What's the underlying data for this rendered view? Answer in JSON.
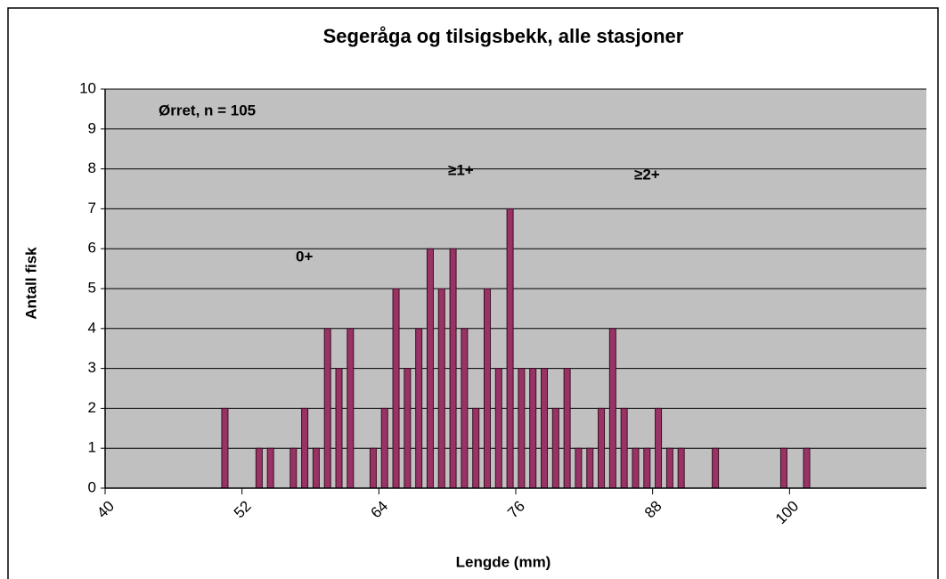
{
  "chart_data": {
    "type": "histogram",
    "title": "Segeråga og tilsigsbekk, alle stasjoner",
    "xlabel": "Lengde (mm)",
    "ylabel": "Antall fisk",
    "annotations": [
      "Ørret, n = 105",
      "0+",
      "≥1+",
      "≥2+"
    ],
    "bins": [
      40,
      41,
      42,
      43,
      44,
      45,
      46,
      47,
      48,
      49,
      50,
      51,
      52,
      53,
      54,
      55,
      56,
      57,
      58,
      59,
      60,
      61,
      62,
      63,
      64,
      65,
      66,
      67,
      68,
      69,
      70,
      71,
      72,
      73,
      74,
      75,
      76,
      77,
      78,
      79,
      80,
      81,
      82,
      83,
      84,
      85,
      86,
      87,
      88,
      89,
      90,
      91,
      92,
      93,
      94,
      95,
      96,
      97,
      98,
      99,
      100,
      101,
      102,
      103,
      104,
      105,
      106,
      107,
      108,
      109,
      110,
      111,
      112
    ],
    "values": [
      0,
      0,
      0,
      0,
      0,
      0,
      0,
      0,
      0,
      0,
      2,
      0,
      0,
      1,
      1,
      0,
      1,
      2,
      1,
      4,
      3,
      4,
      0,
      1,
      2,
      5,
      3,
      4,
      6,
      5,
      6,
      4,
      2,
      5,
      3,
      7,
      3,
      3,
      3,
      2,
      3,
      1,
      1,
      2,
      4,
      2,
      1,
      1,
      2,
      1,
      1,
      0,
      0,
      1,
      0,
      0,
      0,
      0,
      0,
      1,
      0,
      1,
      0,
      0,
      0,
      0,
      0,
      0,
      0,
      0,
      0,
      0
    ],
    "color": "#993366",
    "xlim": [
      40,
      112
    ],
    "xticks": [
      40,
      52,
      64,
      76,
      88,
      100
    ],
    "ylim": [
      0,
      10
    ],
    "yticks": [
      0,
      1,
      2,
      3,
      4,
      5,
      6,
      7,
      8,
      9,
      10
    ],
    "grid": true
  }
}
